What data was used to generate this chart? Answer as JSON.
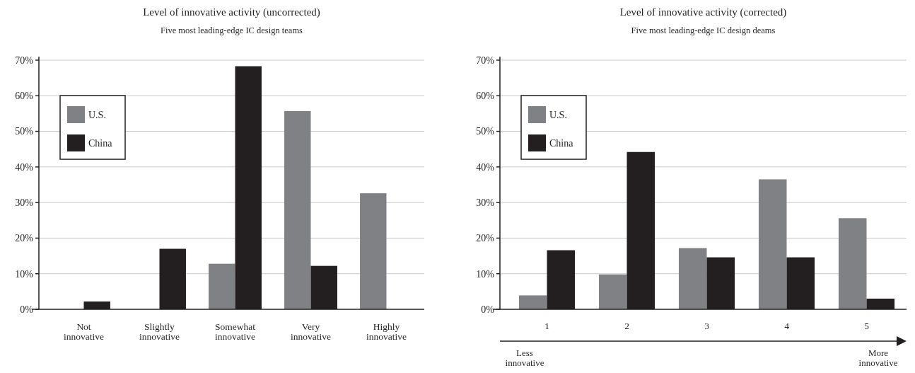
{
  "chart_data": [
    {
      "type": "bar",
      "title": "Level of innovative activity (uncorrected)",
      "subtitle": "Five most leading-edge IC design teams",
      "categories": [
        "Not innovative",
        "Slightly innovative",
        "Somewhat innovative",
        "Very innovative",
        "Highly innovative"
      ],
      "series": [
        {
          "name": "U.S.",
          "color": "#808184",
          "values": [
            0,
            0,
            12.8,
            55.7,
            32.6
          ]
        },
        {
          "name": "China",
          "color": "#231f20",
          "values": [
            2.2,
            17,
            68.3,
            12.2,
            0
          ]
        }
      ],
      "ylim": [
        0,
        70
      ],
      "yticks": [
        {
          "value": 0,
          "label": "0%"
        },
        {
          "value": 10,
          "label": "10%"
        },
        {
          "value": 20,
          "label": "20%"
        },
        {
          "value": 30,
          "label": "30%"
        },
        {
          "value": 40,
          "label": "40%"
        },
        {
          "value": 50,
          "label": "50%"
        },
        {
          "value": 60,
          "label": "60%"
        },
        {
          "value": 70,
          "label": "70%"
        }
      ],
      "grid": "y",
      "legend": "top left"
    },
    {
      "type": "bar",
      "title": "Level of innovative activity (corrected)",
      "subtitle": "Five most leading-edge IC design deams",
      "categories": [
        "1",
        "2",
        "3",
        "4",
        "5"
      ],
      "series": [
        {
          "name": "U.S.",
          "color": "#808184",
          "values": [
            3.9,
            9.8,
            17.2,
            36.5,
            25.6
          ]
        },
        {
          "name": "China",
          "color": "#231f20",
          "values": [
            16.6,
            44.2,
            14.6,
            14.6,
            3
          ]
        }
      ],
      "ylim": [
        0,
        70
      ],
      "yticks": [
        {
          "value": 0,
          "label": "0%"
        },
        {
          "value": 10,
          "label": "10%"
        },
        {
          "value": 20,
          "label": "20%"
        },
        {
          "value": 30,
          "label": "30%"
        },
        {
          "value": 40,
          "label": "40%"
        },
        {
          "value": 50,
          "label": "50%"
        },
        {
          "value": 60,
          "label": "60%"
        },
        {
          "value": 70,
          "label": "70%"
        }
      ],
      "grid": "y",
      "legend": "top left",
      "annotations": [
        "Less innovative",
        "More innovative"
      ]
    }
  ]
}
